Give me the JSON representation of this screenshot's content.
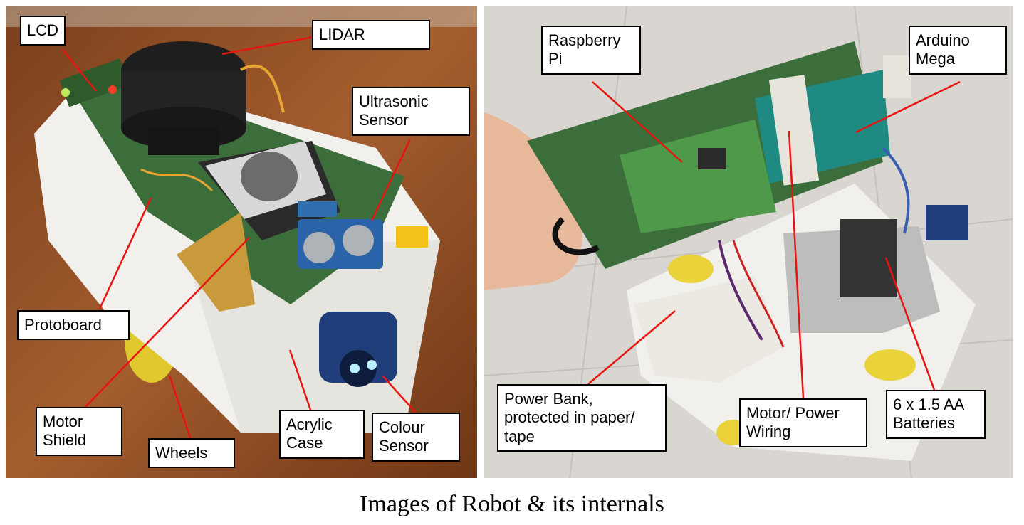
{
  "caption": "Images of Robot & its internals",
  "left_labels": {
    "lcd": "LCD",
    "lidar": "LIDAR",
    "ultrasonic": "Ultrasonic\nSensor",
    "protoboard": "Protoboard",
    "motor_shield": "Motor\nShield",
    "wheels": "Wheels",
    "acrylic": "Acrylic\nCase",
    "colour": "Colour\nSensor"
  },
  "right_labels": {
    "raspberry": "Raspberry\nPi",
    "arduino": "Arduino\nMega",
    "powerbank": "Power Bank,\nprotected in paper/\ntape",
    "wiring": "Motor/ Power\nWiring",
    "batteries": "6 x 1.5 AA\nBatteries"
  },
  "colors": {
    "leader_line": "#e8140f",
    "wood": "#8a4a22",
    "floor": "#d9d6d2",
    "case": "#f1f0ec",
    "pcb_green": "#3b6e3a",
    "wheel": "#e9d23a"
  }
}
